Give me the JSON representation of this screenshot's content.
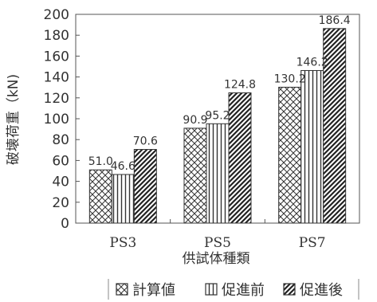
{
  "chart_data": {
    "type": "bar",
    "categories": [
      "PS3",
      "PS5",
      "PS7"
    ],
    "series": [
      {
        "name": "計算値",
        "values": [
          51.0,
          90.9,
          130.2
        ],
        "pattern": "crosshatch"
      },
      {
        "name": "促進前",
        "values": [
          46.6,
          95.2,
          146.2
        ],
        "pattern": "vertical"
      },
      {
        "name": "促進後",
        "values": [
          70.6,
          124.8,
          186.4
        ],
        "pattern": "diagonal"
      }
    ],
    "data_labels": [
      [
        "51.0",
        "46.6",
        "70.6"
      ],
      [
        "90.9",
        "95.2",
        "124.8"
      ],
      [
        "130.2",
        "146.2",
        "186.4"
      ]
    ],
    "title": "",
    "xlabel": "供試体種類",
    "ylabel": "破壊荷重（kN)",
    "ylim": [
      0,
      200
    ],
    "yticks": [
      0,
      20,
      40,
      60,
      80,
      100,
      120,
      140,
      160,
      180,
      200
    ],
    "grid": false,
    "legend_position": "bottom"
  }
}
